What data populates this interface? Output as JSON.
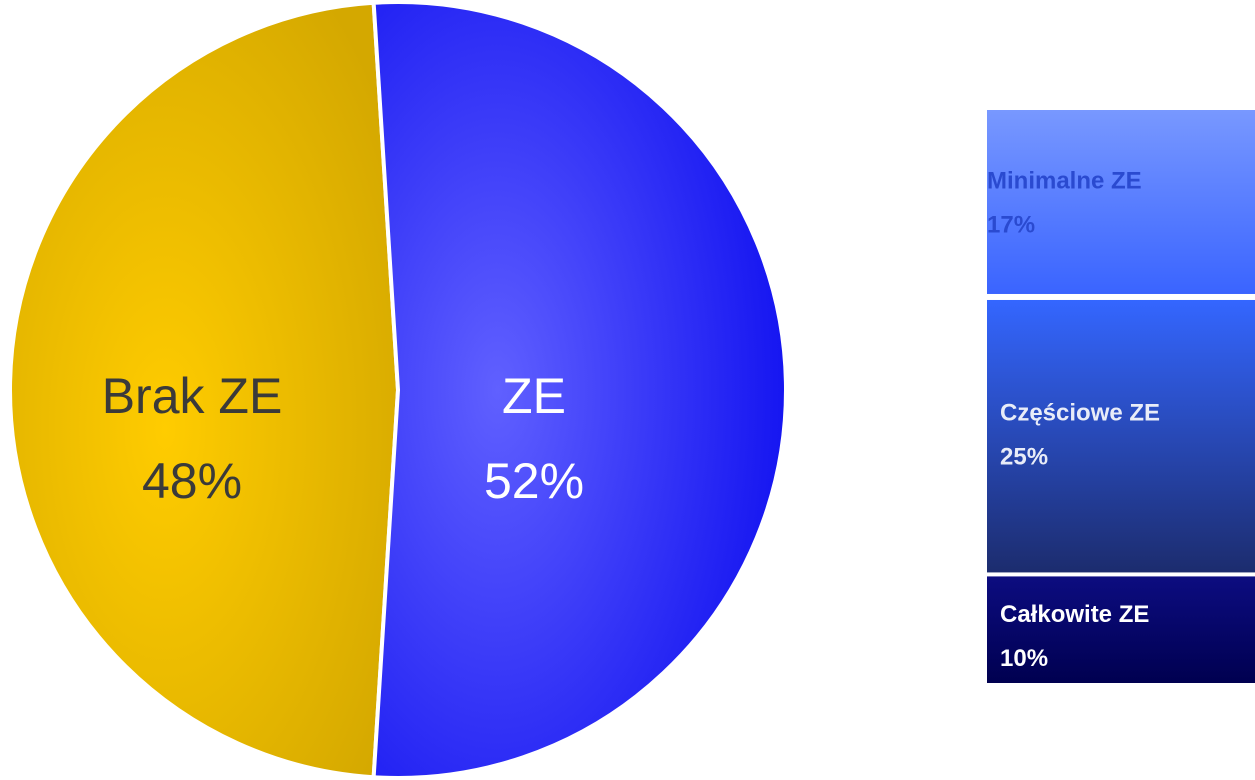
{
  "chart_data": [
    {
      "type": "pie",
      "categories": [
        "Brak ZE",
        "ZE"
      ],
      "values": [
        48,
        52
      ],
      "value_labels": [
        "48%",
        "52%"
      ],
      "colors": [
        "#e6b400",
        "#3030ff"
      ]
    },
    {
      "type": "stacked_bar",
      "categories": [
        "Minimalne ZE",
        "Częściowe ZE",
        "Całkowite ZE"
      ],
      "values": [
        17,
        25,
        10
      ],
      "value_labels": [
        "17%",
        "25%",
        "10%"
      ],
      "colors": [
        "#6f8fff",
        "#2f5cf0",
        "#0a0a78"
      ]
    }
  ]
}
